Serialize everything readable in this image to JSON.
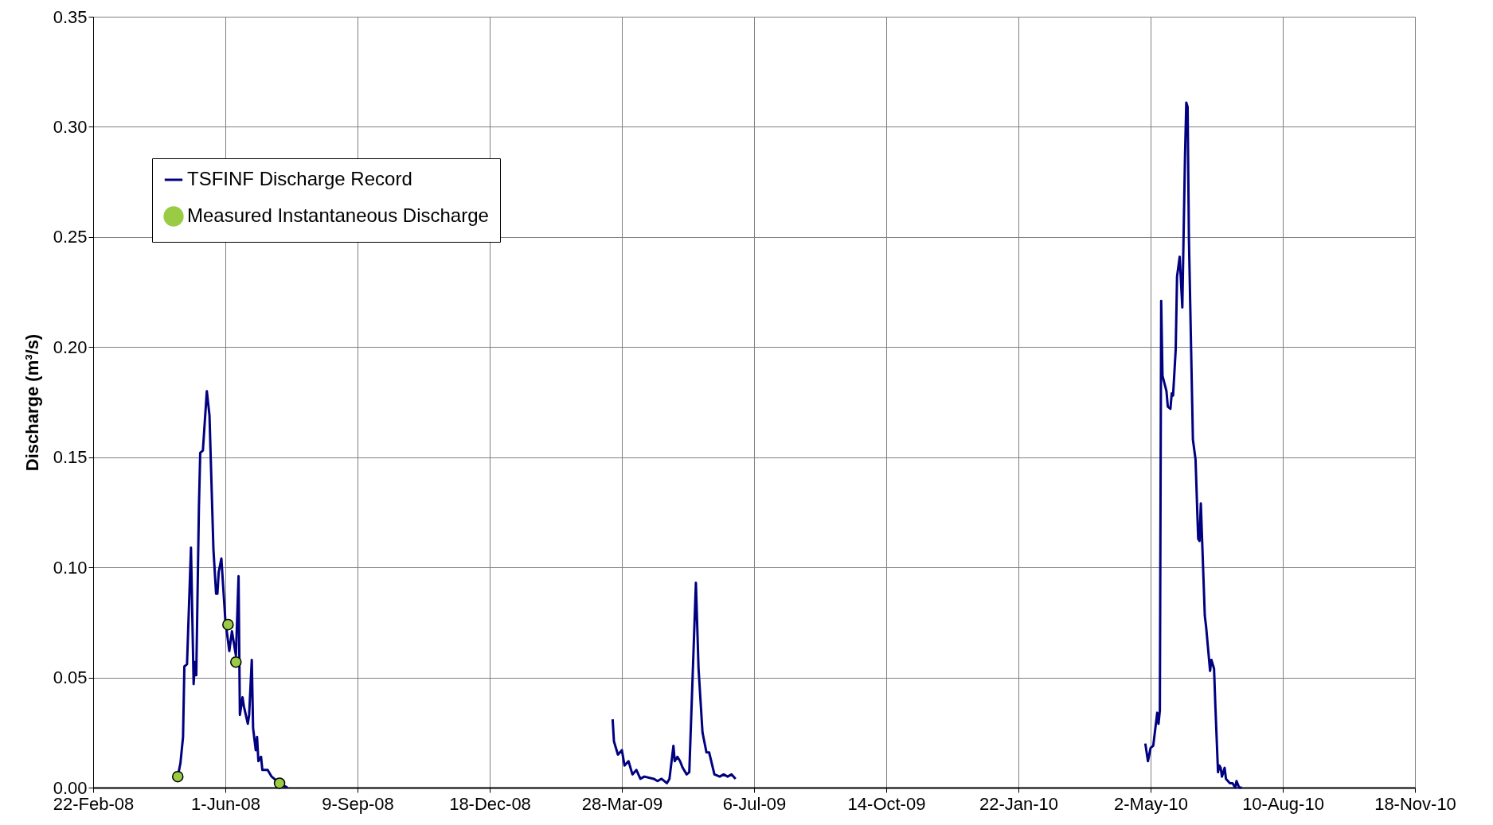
{
  "chart_data": {
    "type": "line",
    "ylabel": "Discharge (m³/s)",
    "xlim": [
      "2008-02-22",
      "2010-11-18"
    ],
    "xticks": [
      {
        "value": "2008-02-22",
        "label": "22-Feb-08"
      },
      {
        "value": "2008-06-01",
        "label": "1-Jun-08"
      },
      {
        "value": "2008-09-09",
        "label": "9-Sep-08"
      },
      {
        "value": "2008-12-18",
        "label": "18-Dec-08"
      },
      {
        "value": "2009-03-28",
        "label": "28-Mar-09"
      },
      {
        "value": "2009-07-06",
        "label": "6-Jul-09"
      },
      {
        "value": "2009-10-14",
        "label": "14-Oct-09"
      },
      {
        "value": "2010-01-22",
        "label": "22-Jan-10"
      },
      {
        "value": "2010-05-02",
        "label": "2-May-10"
      },
      {
        "value": "2010-08-10",
        "label": "10-Aug-10"
      },
      {
        "value": "2010-11-18",
        "label": "18-Nov-10"
      }
    ],
    "ylim": [
      0,
      0.35
    ],
    "yticks": [
      {
        "value": 0,
        "label": "0.00"
      },
      {
        "value": 0.05,
        "label": "0.05"
      },
      {
        "value": 0.1,
        "label": "0.10"
      },
      {
        "value": 0.15,
        "label": "0.15"
      },
      {
        "value": 0.2,
        "label": "0.20"
      },
      {
        "value": 0.25,
        "label": "0.25"
      },
      {
        "value": 0.3,
        "label": "0.30"
      },
      {
        "value": 0.35,
        "label": "0.35"
      }
    ],
    "grid": true,
    "legend": "top left",
    "series": [
      {
        "name": "TSFINF Discharge Record",
        "type": "line",
        "color": "#000080",
        "line_style": "solid",
        "x": [
          "2008-04-26",
          "2008-04-28",
          "2008-04-30",
          "2008-05-01",
          "2008-05-03",
          "2008-05-06",
          "2008-05-08",
          "2008-05-09",
          "2008-05-10",
          "2008-05-12",
          "2008-05-13",
          "2008-05-15",
          "2008-05-18",
          "2008-05-20",
          "2008-05-23",
          "2008-05-25",
          "2008-05-26",
          "2008-05-27",
          "2008-05-29",
          "2008-06-01",
          "2008-06-04",
          "2008-06-06",
          "2008-06-09",
          "2008-06-11",
          "2008-06-12",
          "2008-06-14",
          "2008-06-15",
          "2008-06-18",
          "2008-06-19",
          "2008-06-21",
          "2008-06-22",
          "2008-06-24",
          "2008-06-25",
          "2008-06-26",
          "2008-06-28",
          "2008-06-29",
          "2008-07-03",
          "2008-07-06",
          "2008-07-12",
          "2008-07-18",
          "2008-12-01",
          "2009-03-21",
          "2009-03-22",
          "2009-03-25",
          "2009-03-28",
          "2009-03-30",
          "2009-04-02",
          "2009-04-05",
          "2009-04-08",
          "2009-04-11",
          "2009-04-14",
          "2009-04-21",
          "2009-04-24",
          "2009-04-27",
          "2009-05-01",
          "2009-05-03",
          "2009-05-06",
          "2009-05-07",
          "2009-05-09",
          "2009-05-11",
          "2009-05-13",
          "2009-05-16",
          "2009-05-18",
          "2009-05-23",
          "2009-05-25",
          "2009-05-28",
          "2009-05-31",
          "2009-06-02",
          "2009-06-06",
          "2009-06-10",
          "2009-06-13",
          "2009-06-16",
          "2009-06-19",
          "2009-06-22",
          "2009-12-01",
          "2010-04-28",
          "2010-04-30",
          "2010-05-02",
          "2010-05-04",
          "2010-05-07",
          "2010-05-08",
          "2010-05-09",
          "2010-05-10",
          "2010-05-11",
          "2010-05-14",
          "2010-05-15",
          "2010-05-17",
          "2010-05-18",
          "2010-05-19",
          "2010-05-21",
          "2010-05-22",
          "2010-05-24",
          "2010-05-26",
          "2010-05-28",
          "2010-05-29",
          "2010-05-30",
          "2010-05-31",
          "2010-06-03",
          "2010-06-05",
          "2010-06-07",
          "2010-06-08",
          "2010-06-09",
          "2010-06-12",
          "2010-06-13",
          "2010-06-16",
          "2010-06-17",
          "2010-06-19",
          "2010-06-20",
          "2010-06-22",
          "2010-06-23",
          "2010-06-24",
          "2010-06-25",
          "2010-06-27",
          "2010-06-28",
          "2010-07-01",
          "2010-07-03",
          "2010-07-05",
          "2010-07-06",
          "2010-07-08",
          "2010-07-10"
        ],
        "values": [
          0.005,
          0.011,
          0.023,
          0.055,
          0.056,
          0.109,
          0.047,
          0.057,
          0.051,
          0.127,
          0.152,
          0.153,
          0.18,
          0.169,
          0.108,
          0.088,
          0.088,
          0.098,
          0.104,
          0.076,
          0.062,
          0.071,
          0.06,
          0.096,
          0.033,
          0.041,
          0.037,
          0.029,
          0.033,
          0.058,
          0.027,
          0.017,
          0.023,
          0.012,
          0.014,
          0.008,
          0.008,
          0.005,
          0.002,
          0.0,
          null,
          0.031,
          0.021,
          0.015,
          0.017,
          0.01,
          0.012,
          0.006,
          0.008,
          0.004,
          0.005,
          0.004,
          0.003,
          0.004,
          0.002,
          0.004,
          0.019,
          0.012,
          0.014,
          0.012,
          0.009,
          0.006,
          0.007,
          0.093,
          0.054,
          0.025,
          0.016,
          0.016,
          0.006,
          0.005,
          0.006,
          0.005,
          0.006,
          0.004,
          null,
          0.02,
          0.012,
          0.018,
          0.019,
          0.034,
          0.029,
          0.035,
          0.221,
          0.187,
          0.18,
          0.173,
          0.172,
          0.179,
          0.178,
          0.199,
          0.232,
          0.241,
          0.218,
          0.286,
          0.311,
          0.309,
          0.249,
          0.158,
          0.149,
          0.113,
          0.112,
          0.129,
          0.078,
          0.073,
          0.053,
          0.058,
          0.054,
          0.037,
          0.007,
          0.01,
          0.009,
          0.005,
          0.009,
          0.004,
          0.002,
          0.002,
          0.0,
          0.003,
          0.0,
          0.0
        ]
      },
      {
        "name": "Measured Instantaneous Discharge",
        "type": "scatter",
        "color": "#99cc44",
        "marker": "circle",
        "x": [
          "2008-04-26",
          "2008-06-03",
          "2008-06-09",
          "2008-07-12"
        ],
        "values": [
          0.005,
          0.074,
          0.057,
          0.002
        ]
      }
    ]
  }
}
